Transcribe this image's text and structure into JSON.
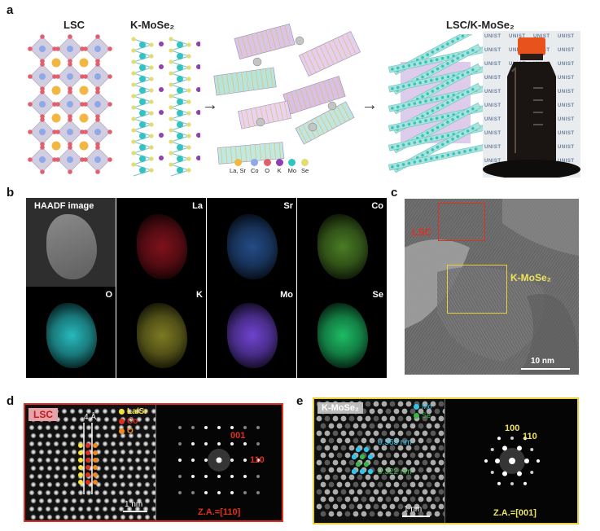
{
  "panels": {
    "a": "a",
    "b": "b",
    "c": "c",
    "d": "d",
    "e": "e"
  },
  "panel_a": {
    "lsc_title": "LSC",
    "kmose2_title": "K-MoSe₂",
    "composite_title": "LSC/K-MoSe₂",
    "legend": [
      {
        "label": "La, Sr",
        "color": "#f2b743"
      },
      {
        "label": "Co",
        "color": "#8fa8e8"
      },
      {
        "label": "O",
        "color": "#e2606e"
      },
      {
        "label": "K",
        "color": "#8f3fae"
      },
      {
        "label": "Mo",
        "color": "#32c3c3"
      },
      {
        "label": "Se",
        "color": "#e2dd72"
      }
    ],
    "bottle_brand": "UNIST"
  },
  "panel_b": {
    "tiles": [
      {
        "label": "HAADF image",
        "color": "#a8a8a8"
      },
      {
        "label": "La",
        "color": "#d21d2e"
      },
      {
        "label": "Sr",
        "color": "#3b7fe0"
      },
      {
        "label": "Co",
        "color": "#7ccf3c"
      },
      {
        "label": "O",
        "color": "#29c3c6"
      },
      {
        "label": "K",
        "color": "#cfcc3a"
      },
      {
        "label": "Mo",
        "color": "#7447d9"
      },
      {
        "label": "Se",
        "color": "#1ec76a"
      }
    ]
  },
  "panel_c": {
    "lsc_label": "LSC",
    "kmose2_label": "K-MoSe₂",
    "scale": "10 nm"
  },
  "panel_d": {
    "tag": "LSC",
    "spacing": "4 Å",
    "legend": [
      {
        "label": "La/Sr",
        "color": "#f4e13c"
      },
      {
        "label": "Co",
        "color": "#e0301e"
      },
      {
        "label": "O",
        "color": "#f08a1e"
      }
    ],
    "fft_labels": [
      "001",
      "110"
    ],
    "scale": "1 nm",
    "zone_axis": "Z.A.=[110]"
  },
  "panel_e": {
    "tag": "K-MoSe₂",
    "legend": [
      {
        "label": "Mo",
        "color": "#32c3e8"
      },
      {
        "label": "Se",
        "color": "#39b54a"
      }
    ],
    "dist1": "0.563 nm",
    "dist2": "0.322 nm",
    "fft_labels": [
      "100",
      "110"
    ],
    "scale": "1 nm",
    "zone_axis": "Z.A.=[001]"
  }
}
